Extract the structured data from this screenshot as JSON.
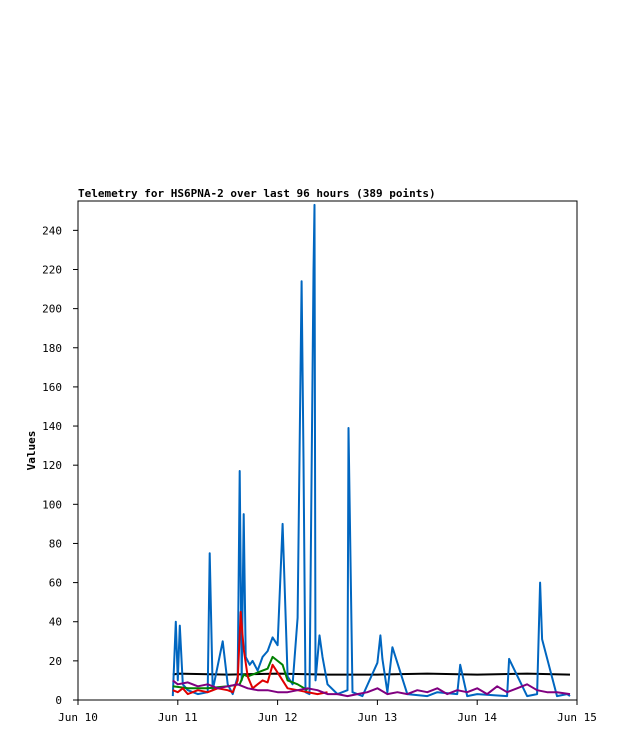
{
  "chart_data": {
    "type": "line",
    "title": "Telemetry for HS6PNA-2 over last 96 hours (389 points)",
    "xlabel": "",
    "ylabel": "Values",
    "xlim": [
      "Jun 10",
      "Jun 15"
    ],
    "ylim": [
      0,
      255
    ],
    "x_ticks": [
      "Jun 10",
      "Jun 11",
      "Jun 12",
      "Jun 13",
      "Jun 14",
      "Jun 15"
    ],
    "y_ticks": [
      0,
      20,
      40,
      60,
      80,
      100,
      120,
      140,
      160,
      180,
      200,
      220,
      240
    ],
    "grid": false,
    "legend": "none",
    "series": [
      {
        "color": "#000000",
        "x": [
          0.95,
          1.0,
          1.5,
          2.0,
          2.5,
          3.0,
          3.5,
          4.0,
          4.5,
          4.93
        ],
        "y": [
          13,
          13.5,
          13,
          13.5,
          13,
          13,
          13.5,
          13,
          13.5,
          13
        ]
      },
      {
        "color": "#0066c0",
        "x": [
          0.95,
          0.98,
          1.0,
          1.02,
          1.05,
          1.1,
          1.2,
          1.3,
          1.32,
          1.35,
          1.45,
          1.5,
          1.55,
          1.6,
          1.62,
          1.64,
          1.66,
          1.68,
          1.72,
          1.75,
          1.8,
          1.85,
          1.9,
          1.95,
          2.0,
          2.05,
          2.1,
          2.15,
          2.2,
          2.24,
          2.26,
          2.28,
          2.32,
          2.36,
          2.37,
          2.38,
          2.42,
          2.45,
          2.5,
          2.6,
          2.7,
          2.71,
          2.75,
          2.85,
          3.0,
          3.03,
          3.05,
          3.1,
          3.15,
          3.3,
          3.5,
          3.6,
          3.8,
          3.83,
          3.9,
          4.0,
          4.3,
          4.32,
          4.5,
          4.6,
          4.63,
          4.65,
          4.8,
          4.9,
          4.93
        ],
        "y": [
          2,
          40,
          10,
          38,
          8,
          5,
          3,
          4,
          75,
          5,
          30,
          8,
          3,
          12,
          117,
          10,
          95,
          22,
          18,
          20,
          15,
          22,
          25,
          32,
          28,
          90,
          12,
          8,
          42,
          214,
          123,
          4,
          3,
          219,
          253,
          10,
          33,
          22,
          8,
          3,
          5,
          139,
          4,
          2,
          19,
          33,
          21,
          4,
          27,
          3,
          2,
          4,
          3,
          18,
          2,
          3,
          2,
          21,
          2,
          3,
          60,
          31,
          2,
          3,
          2
        ]
      },
      {
        "color": "#008000",
        "x": [
          0.95,
          1.1,
          1.3,
          1.5,
          1.62,
          1.66,
          1.7,
          1.75,
          1.8,
          1.85,
          1.9,
          1.95,
          2.0,
          2.05,
          2.1,
          2.2,
          2.3
        ],
        "y": [
          7,
          6,
          6,
          7,
          8,
          13,
          12,
          13,
          14,
          15,
          16,
          22,
          20,
          18,
          10,
          8,
          5
        ]
      },
      {
        "color": "#e00000",
        "x": [
          0.95,
          1.0,
          1.05,
          1.1,
          1.2,
          1.3,
          1.4,
          1.5,
          1.55,
          1.6,
          1.63,
          1.66,
          1.7,
          1.75,
          1.8,
          1.85,
          1.9,
          1.95,
          2.0,
          2.05,
          2.1,
          2.2,
          2.3,
          2.4,
          2.5
        ],
        "y": [
          5,
          4,
          6,
          3,
          5,
          4,
          6,
          5,
          4,
          10,
          45,
          26,
          12,
          6,
          8,
          10,
          9,
          18,
          14,
          10,
          6,
          5,
          4,
          3,
          4
        ]
      },
      {
        "color": "#800080",
        "x": [
          0.95,
          1.0,
          1.1,
          1.2,
          1.3,
          1.4,
          1.5,
          1.6,
          1.7,
          1.8,
          1.9,
          2.0,
          2.1,
          2.2,
          2.3,
          2.4,
          2.5,
          2.6,
          2.7,
          2.8,
          2.9,
          3.0,
          3.1,
          3.2,
          3.3,
          3.4,
          3.5,
          3.6,
          3.7,
          3.8,
          3.9,
          4.0,
          4.1,
          4.2,
          4.3,
          4.4,
          4.5,
          4.6,
          4.7,
          4.8,
          4.93
        ],
        "y": [
          10,
          8,
          9,
          7,
          8,
          6,
          7,
          8,
          6,
          5,
          5,
          4,
          4,
          5,
          6,
          5,
          3,
          3,
          2,
          3,
          4,
          6,
          3,
          4,
          3,
          5,
          4,
          6,
          3,
          5,
          4,
          6,
          3,
          7,
          4,
          6,
          8,
          5,
          4,
          4,
          3
        ]
      }
    ]
  }
}
